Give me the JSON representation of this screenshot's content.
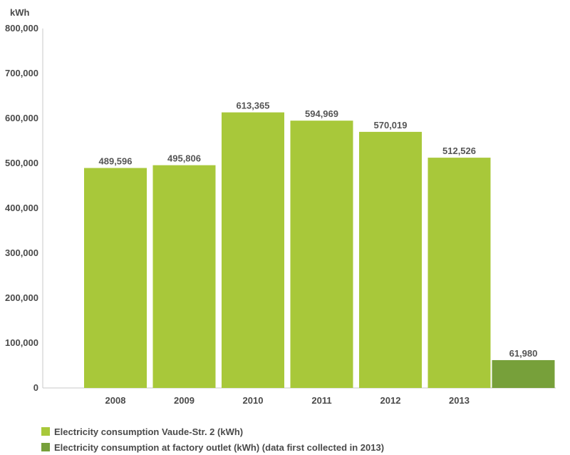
{
  "chart_data": {
    "type": "bar",
    "unit_label": "kWh",
    "categories": [
      "2008",
      "2009",
      "2010",
      "2011",
      "2012",
      "2013"
    ],
    "series": [
      {
        "name": "Electricity consumption Vaude-Str. 2 (kWh)",
        "color": "#a8c83a",
        "values": [
          489596,
          495806,
          613365,
          594969,
          570019,
          512526
        ]
      },
      {
        "name": "Electricity consumption at factory outlet (kWh) (data first collected in 2013)",
        "color": "#77a03a",
        "values": [
          null,
          null,
          null,
          null,
          null,
          61980
        ]
      }
    ],
    "data_labels": [
      [
        "489,596",
        "495,806",
        "613,365",
        "594,969",
        "570,019",
        "512,526"
      ],
      [
        null,
        null,
        null,
        null,
        null,
        "61,980"
      ]
    ],
    "yticks": [
      0,
      100000,
      200000,
      300000,
      400000,
      500000,
      600000,
      700000,
      800000
    ],
    "ytick_labels": [
      "0",
      "100,000",
      "200,000",
      "300,000",
      "400,000",
      "500,000",
      "600,000",
      "700,000",
      "800,000"
    ],
    "ylim": [
      0,
      800000
    ],
    "title": "",
    "xlabel": "",
    "ylabel": "kWh",
    "grid": false,
    "legend_position": "bottom-left"
  }
}
